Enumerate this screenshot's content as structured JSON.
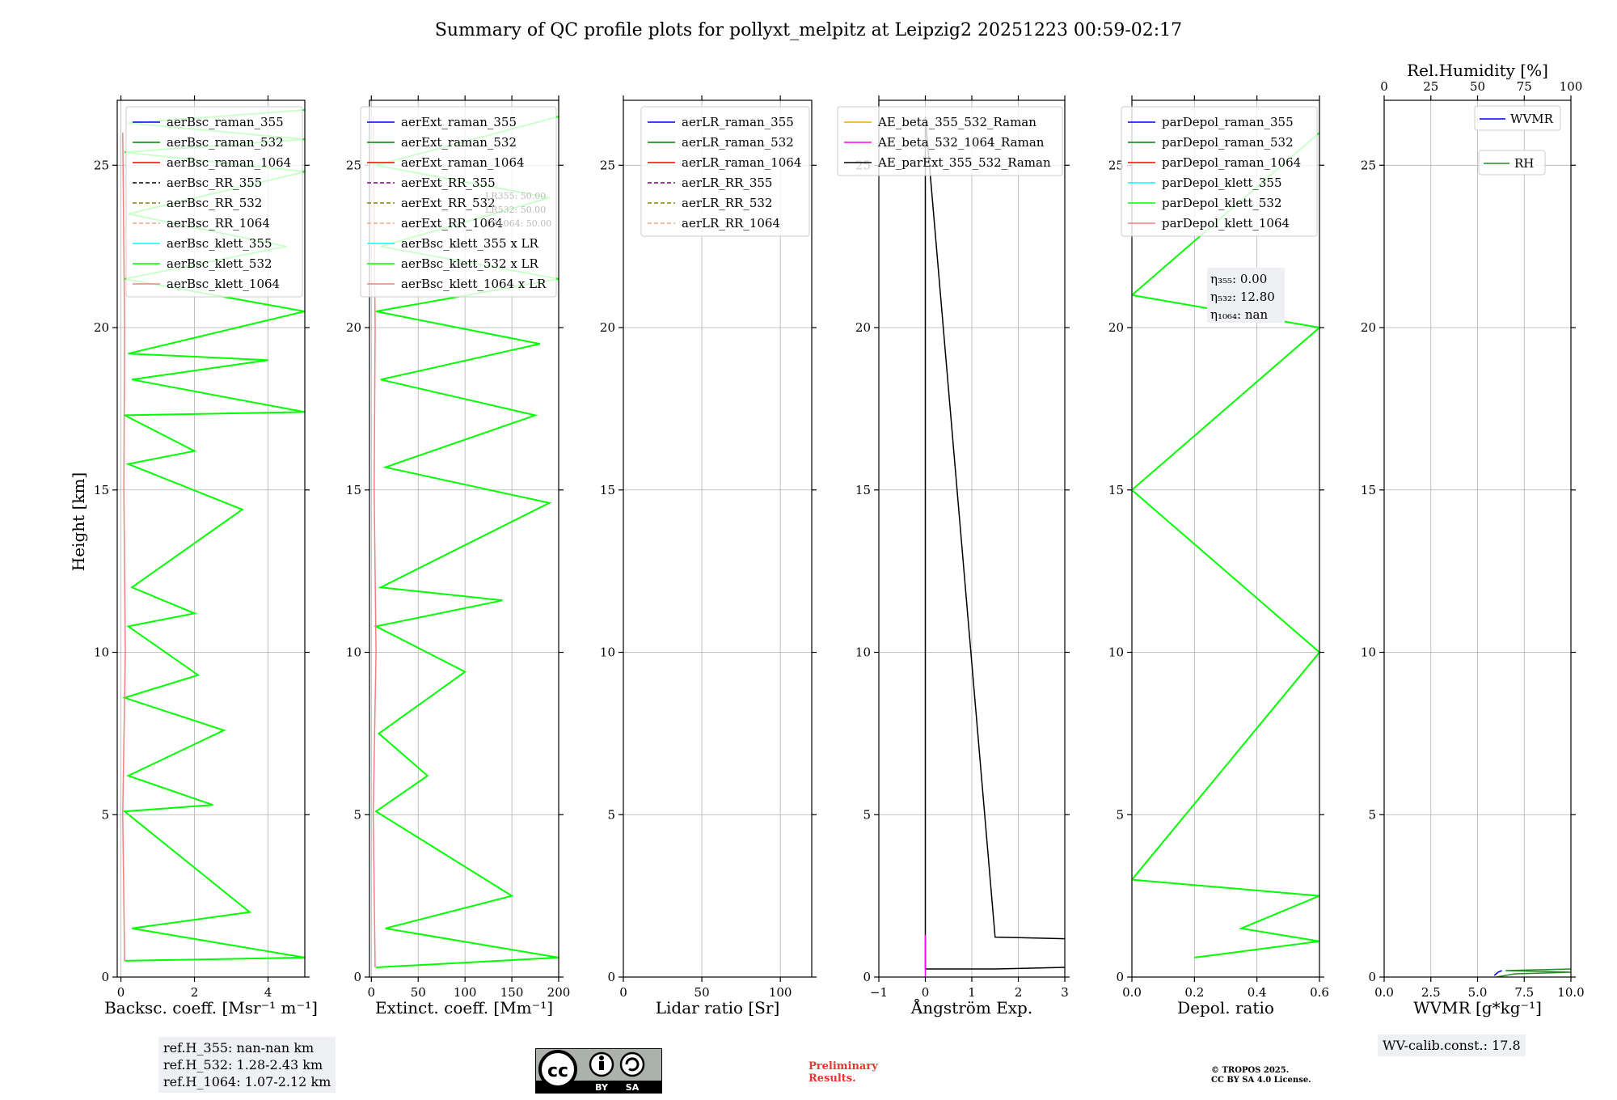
{
  "figure_title": "Summary of QC profile plots for pollyxt_melpitz at Leipzig2 20251223 00:59-02:17",
  "y_label": "Height [km]",
  "y_ticks": [
    "0",
    "5",
    "10",
    "15",
    "20",
    "25"
  ],
  "colors": {
    "blue": "#0000ee",
    "green": "#008000",
    "red": "#ff0000",
    "purple": "#800080",
    "olive": "#808000",
    "salmon": "#f4a582",
    "cyan": "#00ffff",
    "lime": "#00ff00",
    "lightcoral": "#f08080",
    "orange": "#ffa500",
    "magenta": "#ff00ff",
    "black": "#000000",
    "darkgreen": "#228b22"
  },
  "chart_data": [
    {
      "type": "line",
      "panel": "backscatter",
      "xlabel": "Backsc. coeff. [Msr⁻¹ m⁻¹]",
      "xlim": [
        -0.1,
        5
      ],
      "ylim": [
        0,
        27
      ],
      "xticks": [
        "0",
        "2",
        "4"
      ],
      "grid": true,
      "legend": [
        "aerBsc_raman_355",
        "aerBsc_raman_532",
        "aerBsc_raman_1064",
        "aerBsc_RR_355",
        "aerBsc_RR_532",
        "aerBsc_RR_1064",
        "aerBsc_klett_355",
        "aerBsc_klett_532",
        "aerBsc_klett_1064"
      ],
      "legend_location": "upper right",
      "series": [
        {
          "name": "aerBsc_klett_532",
          "x": [
            0.1,
            5.0,
            0.3,
            3.5,
            0.1,
            2.5,
            0.2,
            2.8,
            0.1,
            2.1,
            0.2,
            2.0,
            0.3,
            3.3,
            0.2,
            2.0,
            0.1,
            5.0,
            0.3,
            4.0,
            0.2,
            5.0,
            0.1,
            4.5,
            0.2,
            5.0,
            0.1,
            5.0,
            0.2,
            5.0
          ],
          "y": [
            0.5,
            0.6,
            1.5,
            2.0,
            5.1,
            5.3,
            6.2,
            7.6,
            8.6,
            9.3,
            10.8,
            11.2,
            12.0,
            14.4,
            15.8,
            16.2,
            17.3,
            17.4,
            18.4,
            19.0,
            19.2,
            20.5,
            21.5,
            22.5,
            23.5,
            24.8,
            25.4,
            25.8,
            26.3,
            26.7
          ]
        },
        {
          "name": "aerBsc_klett_1064",
          "x": [
            0.1,
            0.05,
            0.12,
            0.08,
            0.1,
            0.05
          ],
          "y": [
            0.5,
            5.0,
            10.0,
            15.0,
            20.0,
            26.0
          ]
        }
      ],
      "annotation": [
        "ref.H_355: nan-nan km",
        "ref.H_532: 1.28-2.43 km",
        "ref.H_1064: 1.07-2.12 km"
      ]
    },
    {
      "type": "line",
      "panel": "extinction",
      "xlabel": "Extinct. coeff. [Mm⁻¹]",
      "xlim": [
        -2,
        200
      ],
      "ylim": [
        0,
        27
      ],
      "xticks": [
        "0",
        "50",
        "100",
        "150",
        "200"
      ],
      "grid": true,
      "legend": [
        "aerExt_raman_355",
        "aerExt_raman_532",
        "aerExt_raman_1064",
        "aerExt_RR_355",
        "aerExt_RR_532",
        "aerExt_RR_1064",
        "aerBsc_klett_355 x LR",
        "aerBsc_klett_532 x LR",
        "aerBsc_klett_1064 x LR"
      ],
      "legend_location": "upper right",
      "lr_labels": [
        "LR355: 50.00",
        "LR532: 50.00",
        "LR1064: 50.00"
      ],
      "series": [
        {
          "name": "aerBsc_klett_532 x LR",
          "x": [
            5,
            200,
            15,
            150,
            5,
            60,
            8,
            100,
            5,
            140,
            10,
            190,
            15,
            175,
            10,
            180,
            5,
            200,
            10,
            190,
            5,
            200
          ],
          "y": [
            0.3,
            0.6,
            1.5,
            2.5,
            5.1,
            6.2,
            7.5,
            9.4,
            10.8,
            11.6,
            12.0,
            14.6,
            15.7,
            17.3,
            18.4,
            19.5,
            20.5,
            21.5,
            22.5,
            24.0,
            25.0,
            26.5
          ]
        },
        {
          "name": "aerBsc_klett_1064 x LR",
          "x": [
            4,
            2,
            5,
            3,
            4,
            2
          ],
          "y": [
            0.3,
            5.0,
            10.0,
            15.0,
            20.0,
            26.5
          ]
        }
      ]
    },
    {
      "type": "line",
      "panel": "lidar_ratio",
      "xlabel": "Lidar ratio [Sr]",
      "xlim": [
        0,
        120
      ],
      "ylim": [
        0,
        27
      ],
      "xticks": [
        "0",
        "50",
        "100"
      ],
      "grid": true,
      "legend": [
        "aerLR_raman_355",
        "aerLR_raman_532",
        "aerLR_raman_1064",
        "aerLR_RR_355",
        "aerLR_RR_532",
        "aerLR_RR_1064"
      ],
      "legend_location": "upper right",
      "series": []
    },
    {
      "type": "line",
      "panel": "angstrom",
      "xlabel": "Ångström Exp.",
      "xlim": [
        -1,
        3
      ],
      "ylim": [
        0,
        27
      ],
      "xticks": [
        "−1",
        "0",
        "1",
        "2",
        "3"
      ],
      "grid": true,
      "legend": [
        "AE_beta_355_532_Raman",
        "AE_beta_532_1064_Raman",
        "AE_parExt_355_532_Raman"
      ],
      "legend_location": "upper right",
      "series": [
        {
          "name": "AE_parExt_355_532_Raman",
          "x": [
            3.0,
            1.5,
            0.0,
            0.0,
            0.0,
            1.5,
            3.0
          ],
          "y": [
            0.3,
            0.25,
            0.25,
            1.3,
            26.5,
            1.23,
            1.18
          ]
        },
        {
          "name": "AE_beta_532_1064_Raman",
          "x": [
            0.0,
            0.0
          ],
          "y": [
            0.0,
            1.3
          ]
        }
      ]
    },
    {
      "type": "line",
      "panel": "depolarization",
      "xlabel": "Depol. ratio",
      "xlim": [
        0,
        0.6
      ],
      "ylim": [
        0,
        27
      ],
      "xticks": [
        "0.0",
        "0.2",
        "0.4",
        "0.6"
      ],
      "grid": true,
      "legend": [
        "parDepol_raman_355",
        "parDepol_raman_532",
        "parDepol_raman_1064",
        "parDepol_klett_355",
        "parDepol_klett_532",
        "parDepol_klett_1064"
      ],
      "legend_location": "upper right",
      "eta_labels": [
        "η₃₅₅: 0.00",
        "η₅₃₂: 12.80",
        "η₁₀₆₄: nan"
      ],
      "series": [
        {
          "name": "parDepol_klett_532",
          "x": [
            0.2,
            0.6,
            0.35,
            0.6,
            0.0,
            0.6,
            0.0,
            0.6,
            0.0,
            0.6
          ],
          "y": [
            0.6,
            1.1,
            1.5,
            2.5,
            3.0,
            10.0,
            15.0,
            20.0,
            21.0,
            26.0
          ]
        }
      ]
    },
    {
      "type": "line",
      "panel": "water_vapor",
      "xlabel": "WVMR [g*kg⁻¹]",
      "xlim": [
        0,
        10
      ],
      "ylim": [
        0,
        27
      ],
      "xticks": [
        "0.0",
        "2.5",
        "5.0",
        "7.5",
        "10.0"
      ],
      "x2label": "Rel.Humidity [%]",
      "x2lim": [
        0,
        100
      ],
      "x2ticks": [
        "0",
        "25",
        "50",
        "75",
        "100"
      ],
      "grid": true,
      "legend": [
        "WVMR",
        "RH"
      ],
      "legend_location": "upper right",
      "series": [
        {
          "name": "WVMR",
          "x": [
            5.9,
            6.1,
            6.3
          ],
          "y": [
            0.05,
            0.15,
            0.2
          ]
        },
        {
          "name": "RH",
          "x": [
            60,
            70,
            100,
            65,
            100
          ],
          "y": [
            0.0,
            0.1,
            0.15,
            0.2,
            0.25
          ]
        }
      ],
      "annotation": "WV-calib.const.: 17.8"
    }
  ],
  "footer": {
    "license_badge": [
      "BY",
      "SA"
    ],
    "preliminary": [
      "Preliminary",
      "Results."
    ],
    "copyright": [
      "© TROPOS 2025.",
      "CC BY SA 4.0 License."
    ]
  }
}
